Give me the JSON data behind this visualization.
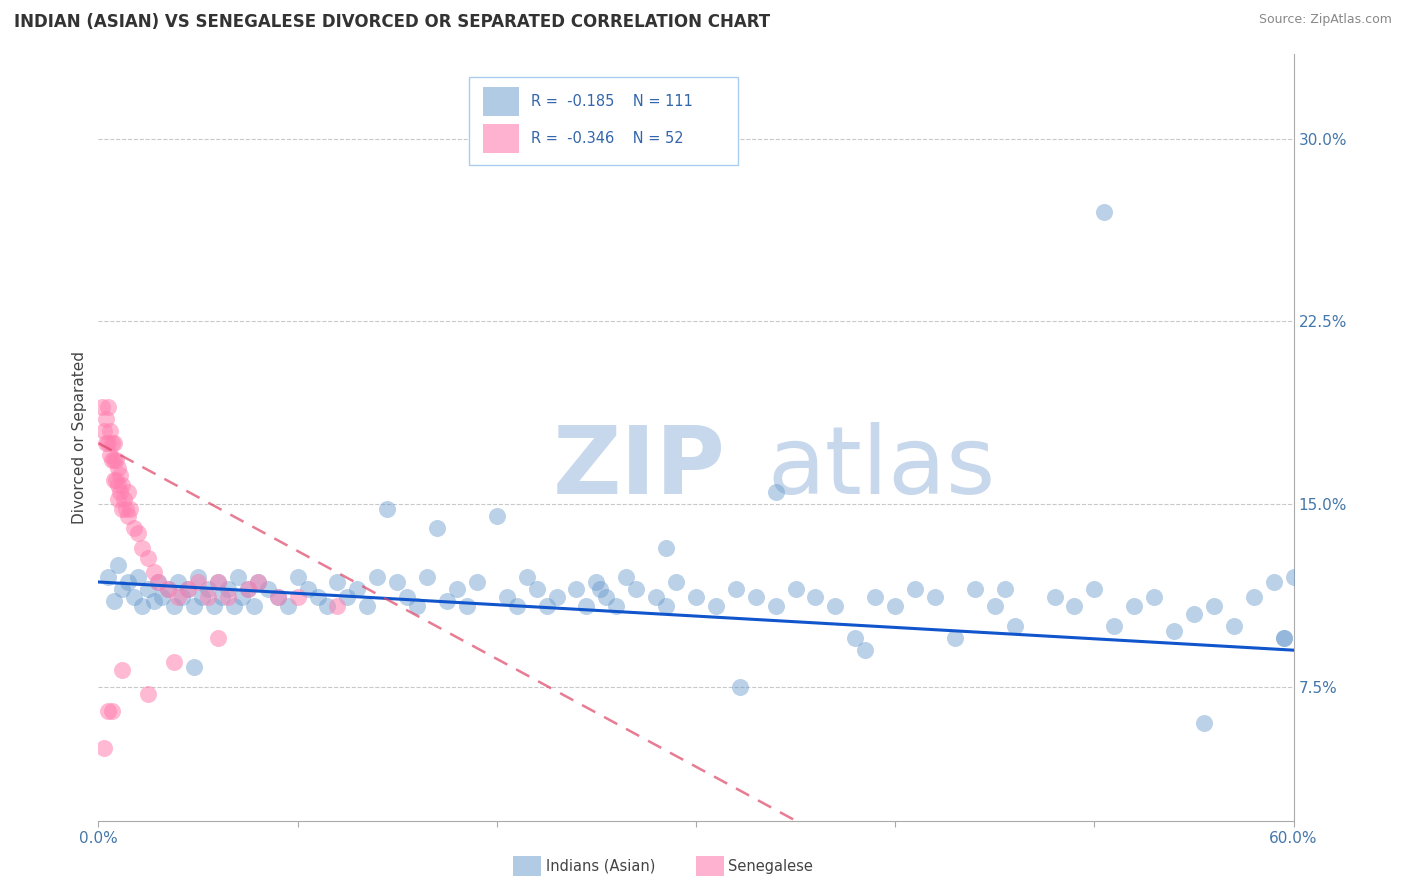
{
  "title": "INDIAN (ASIAN) VS SENEGALESE DIVORCED OR SEPARATED CORRELATION CHART",
  "source": "Source: ZipAtlas.com",
  "ylabel_ticks": [
    "7.5%",
    "15.0%",
    "22.5%",
    "30.0%"
  ],
  "xlim": [
    0.0,
    0.6
  ],
  "ylim": [
    0.02,
    0.335
  ],
  "ytick_vals": [
    0.075,
    0.15,
    0.225,
    0.3
  ],
  "xtick_vals": [
    0.0,
    0.1,
    0.2,
    0.3,
    0.4,
    0.5,
    0.6
  ],
  "legend_r1": "R =  -0.185   N = 111",
  "legend_r2": "R =  -0.346   N = 52",
  "legend_label1": "Indians (Asian)",
  "legend_label2": "Senegalese",
  "blue_color": "#6699CC",
  "pink_color": "#FF80B0",
  "trend_blue": "#1155CC",
  "trend_pink": "#DD4466",
  "watermark_zip": "ZIP",
  "watermark_atlas": "atlas",
  "watermark_color_zip": "#C8D8EC",
  "watermark_color_atlas": "#C8D8EC",
  "ylabel": "Divorced or Separated",
  "background": "#FFFFFF",
  "grid_color": "#BBBBBB",
  "blue_scatter_x": [
    0.005,
    0.008,
    0.01,
    0.012,
    0.015,
    0.018,
    0.02,
    0.022,
    0.025,
    0.028,
    0.03,
    0.032,
    0.035,
    0.038,
    0.04,
    0.042,
    0.045,
    0.048,
    0.05,
    0.052,
    0.055,
    0.058,
    0.06,
    0.062,
    0.065,
    0.068,
    0.07,
    0.072,
    0.075,
    0.078,
    0.08,
    0.085,
    0.09,
    0.095,
    0.1,
    0.105,
    0.11,
    0.115,
    0.12,
    0.125,
    0.13,
    0.135,
    0.14,
    0.15,
    0.155,
    0.16,
    0.165,
    0.17,
    0.175,
    0.18,
    0.185,
    0.19,
    0.2,
    0.205,
    0.21,
    0.215,
    0.22,
    0.225,
    0.23,
    0.24,
    0.245,
    0.25,
    0.255,
    0.26,
    0.265,
    0.27,
    0.28,
    0.285,
    0.29,
    0.3,
    0.31,
    0.32,
    0.33,
    0.34,
    0.35,
    0.36,
    0.37,
    0.38,
    0.39,
    0.4,
    0.41,
    0.42,
    0.43,
    0.44,
    0.45,
    0.46,
    0.48,
    0.49,
    0.5,
    0.51,
    0.52,
    0.53,
    0.54,
    0.55,
    0.56,
    0.57,
    0.58,
    0.59,
    0.595,
    0.6,
    0.385,
    0.455,
    0.595,
    0.555,
    0.505,
    0.34,
    0.285,
    0.145,
    0.048,
    0.322,
    0.252
  ],
  "blue_scatter_y": [
    0.12,
    0.11,
    0.125,
    0.115,
    0.118,
    0.112,
    0.12,
    0.108,
    0.115,
    0.11,
    0.118,
    0.112,
    0.115,
    0.108,
    0.118,
    0.112,
    0.115,
    0.108,
    0.12,
    0.112,
    0.115,
    0.108,
    0.118,
    0.112,
    0.115,
    0.108,
    0.12,
    0.112,
    0.115,
    0.108,
    0.118,
    0.115,
    0.112,
    0.108,
    0.12,
    0.115,
    0.112,
    0.108,
    0.118,
    0.112,
    0.115,
    0.108,
    0.12,
    0.118,
    0.112,
    0.108,
    0.12,
    0.14,
    0.11,
    0.115,
    0.108,
    0.118,
    0.145,
    0.112,
    0.108,
    0.12,
    0.115,
    0.108,
    0.112,
    0.115,
    0.108,
    0.118,
    0.112,
    0.108,
    0.12,
    0.115,
    0.112,
    0.108,
    0.118,
    0.112,
    0.108,
    0.115,
    0.112,
    0.108,
    0.115,
    0.112,
    0.108,
    0.095,
    0.112,
    0.108,
    0.115,
    0.112,
    0.095,
    0.115,
    0.108,
    0.1,
    0.112,
    0.108,
    0.115,
    0.1,
    0.108,
    0.112,
    0.098,
    0.105,
    0.108,
    0.1,
    0.112,
    0.118,
    0.095,
    0.12,
    0.09,
    0.115,
    0.095,
    0.06,
    0.27,
    0.155,
    0.132,
    0.148,
    0.083,
    0.075,
    0.115
  ],
  "pink_scatter_x": [
    0.002,
    0.003,
    0.004,
    0.004,
    0.005,
    0.005,
    0.006,
    0.006,
    0.007,
    0.007,
    0.008,
    0.008,
    0.008,
    0.009,
    0.009,
    0.01,
    0.01,
    0.01,
    0.011,
    0.011,
    0.012,
    0.012,
    0.013,
    0.014,
    0.015,
    0.015,
    0.016,
    0.018,
    0.02,
    0.022,
    0.025,
    0.028,
    0.03,
    0.035,
    0.04,
    0.045,
    0.05,
    0.055,
    0.06,
    0.065,
    0.075,
    0.08,
    0.09,
    0.1,
    0.12,
    0.038,
    0.025,
    0.012,
    0.007,
    0.005,
    0.003,
    0.06
  ],
  "pink_scatter_y": [
    0.19,
    0.18,
    0.175,
    0.185,
    0.175,
    0.19,
    0.18,
    0.17,
    0.175,
    0.168,
    0.175,
    0.168,
    0.16,
    0.168,
    0.16,
    0.165,
    0.158,
    0.152,
    0.162,
    0.155,
    0.158,
    0.148,
    0.152,
    0.148,
    0.155,
    0.145,
    0.148,
    0.14,
    0.138,
    0.132,
    0.128,
    0.122,
    0.118,
    0.115,
    0.112,
    0.115,
    0.118,
    0.112,
    0.118,
    0.112,
    0.115,
    0.118,
    0.112,
    0.112,
    0.108,
    0.085,
    0.072,
    0.082,
    0.065,
    0.065,
    0.05,
    0.095
  ],
  "blue_trend_x0": 0.0,
  "blue_trend_x1": 0.6,
  "blue_trend_y0": 0.118,
  "blue_trend_y1": 0.09,
  "pink_trend_x0": 0.0,
  "pink_trend_x1": 0.35,
  "pink_trend_y0": 0.175,
  "pink_trend_y1": 0.02
}
